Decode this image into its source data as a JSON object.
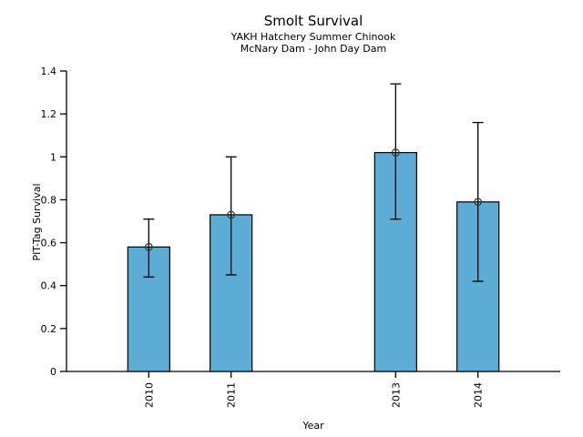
{
  "chart_data": {
    "type": "bar",
    "title": "Smolt Survival",
    "subtitle_line1": "YAKH Hatchery Summer Chinook",
    "subtitle_line2": "McNary Dam - John Day Dam",
    "xlabel": "Year",
    "ylabel": "PIT-Tag Survival",
    "categories": [
      "2010",
      "2011",
      "2013",
      "2014"
    ],
    "x": [
      2010,
      2011,
      2013,
      2014
    ],
    "series": [
      {
        "name": "PIT-Tag Survival",
        "values": [
          0.58,
          0.73,
          1.02,
          0.79
        ],
        "error_low": [
          0.44,
          0.45,
          0.71,
          0.42
        ],
        "error_high": [
          0.71,
          1.0,
          1.34,
          1.16
        ]
      }
    ],
    "xlim": [
      2009,
      2015
    ],
    "ylim": [
      0,
      1.4
    ],
    "ytick_values": [
      0,
      0.2,
      0.4,
      0.6,
      0.8,
      1.0,
      1.2,
      1.4
    ],
    "ytick_labels": [
      "0",
      "0.2",
      "0.4",
      "0.6",
      "0.8",
      "1",
      "1.2",
      "1.4"
    ],
    "bar_width_years": 0.51,
    "grid": false,
    "legend_position": "none",
    "marker": "open-circle",
    "colors": {
      "bar_fill": "#5CACD6",
      "bar_stroke": "#000000",
      "error_bar": "#000000",
      "marker_stroke": "#333333",
      "axis": "#000000",
      "text": "#000000",
      "background": "#FFFFFF"
    }
  }
}
